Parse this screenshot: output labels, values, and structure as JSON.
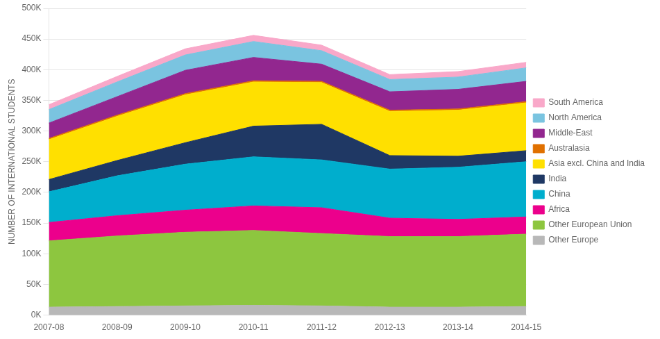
{
  "chart_data": {
    "type": "area",
    "stacked": true,
    "categories": [
      "2007-08",
      "2008-09",
      "2009-10",
      "2010-11",
      "2011-12",
      "2012-13",
      "2013-14",
      "2014-15"
    ],
    "series": [
      {
        "name": "Other Europe",
        "color": "#b8b8b8",
        "values": [
          13000,
          14000,
          15000,
          16000,
          15000,
          13000,
          13000,
          14000
        ]
      },
      {
        "name": "Other European Union",
        "color": "#8dc63f",
        "values": [
          108000,
          115000,
          120000,
          122000,
          118000,
          115000,
          115000,
          118000
        ]
      },
      {
        "name": "Africa",
        "color": "#ec008c",
        "values": [
          30000,
          33000,
          36000,
          40000,
          42000,
          30000,
          28000,
          28000
        ]
      },
      {
        "name": "China",
        "color": "#00aecd",
        "values": [
          50000,
          65000,
          75000,
          80000,
          78000,
          80000,
          85000,
          90000
        ]
      },
      {
        "name": "India",
        "color": "#1f3864",
        "values": [
          20000,
          25000,
          35000,
          50000,
          58000,
          22000,
          18000,
          18000
        ]
      },
      {
        "name": "Asia excl. China and India",
        "color": "#ffe000",
        "values": [
          65000,
          72000,
          78000,
          72000,
          68000,
          72000,
          75000,
          78000
        ]
      },
      {
        "name": "Australasia",
        "color": "#e07000",
        "values": [
          2000,
          2000,
          2000,
          2000,
          2000,
          2000,
          2000,
          2000
        ]
      },
      {
        "name": "Middle-East",
        "color": "#92278f",
        "values": [
          25000,
          30000,
          38000,
          38000,
          28000,
          30000,
          32000,
          33000
        ]
      },
      {
        "name": "North America",
        "color": "#7ac4e0",
        "values": [
          22000,
          24000,
          25000,
          26000,
          22000,
          20000,
          20000,
          22000
        ]
      },
      {
        "name": "South America",
        "color": "#f9a8c9",
        "values": [
          8000,
          9000,
          10000,
          10000,
          9000,
          8000,
          9000,
          9000
        ]
      }
    ],
    "ylabel": "NUMBER OF INTERNATIONAL STUDENTS",
    "ylim": [
      0,
      500000
    ],
    "yticks": [
      {
        "value": 0,
        "label": "0K"
      },
      {
        "value": 50000,
        "label": "50K"
      },
      {
        "value": 100000,
        "label": "100K"
      },
      {
        "value": 150000,
        "label": "150K"
      },
      {
        "value": 200000,
        "label": "200K"
      },
      {
        "value": 250000,
        "label": "250K"
      },
      {
        "value": 300000,
        "label": "300K"
      },
      {
        "value": 350000,
        "label": "350K"
      },
      {
        "value": 400000,
        "label": "400K"
      },
      {
        "value": 450000,
        "label": "450K"
      },
      {
        "value": 500000,
        "label": "500K"
      }
    ],
    "grid": true,
    "legend": "right"
  }
}
